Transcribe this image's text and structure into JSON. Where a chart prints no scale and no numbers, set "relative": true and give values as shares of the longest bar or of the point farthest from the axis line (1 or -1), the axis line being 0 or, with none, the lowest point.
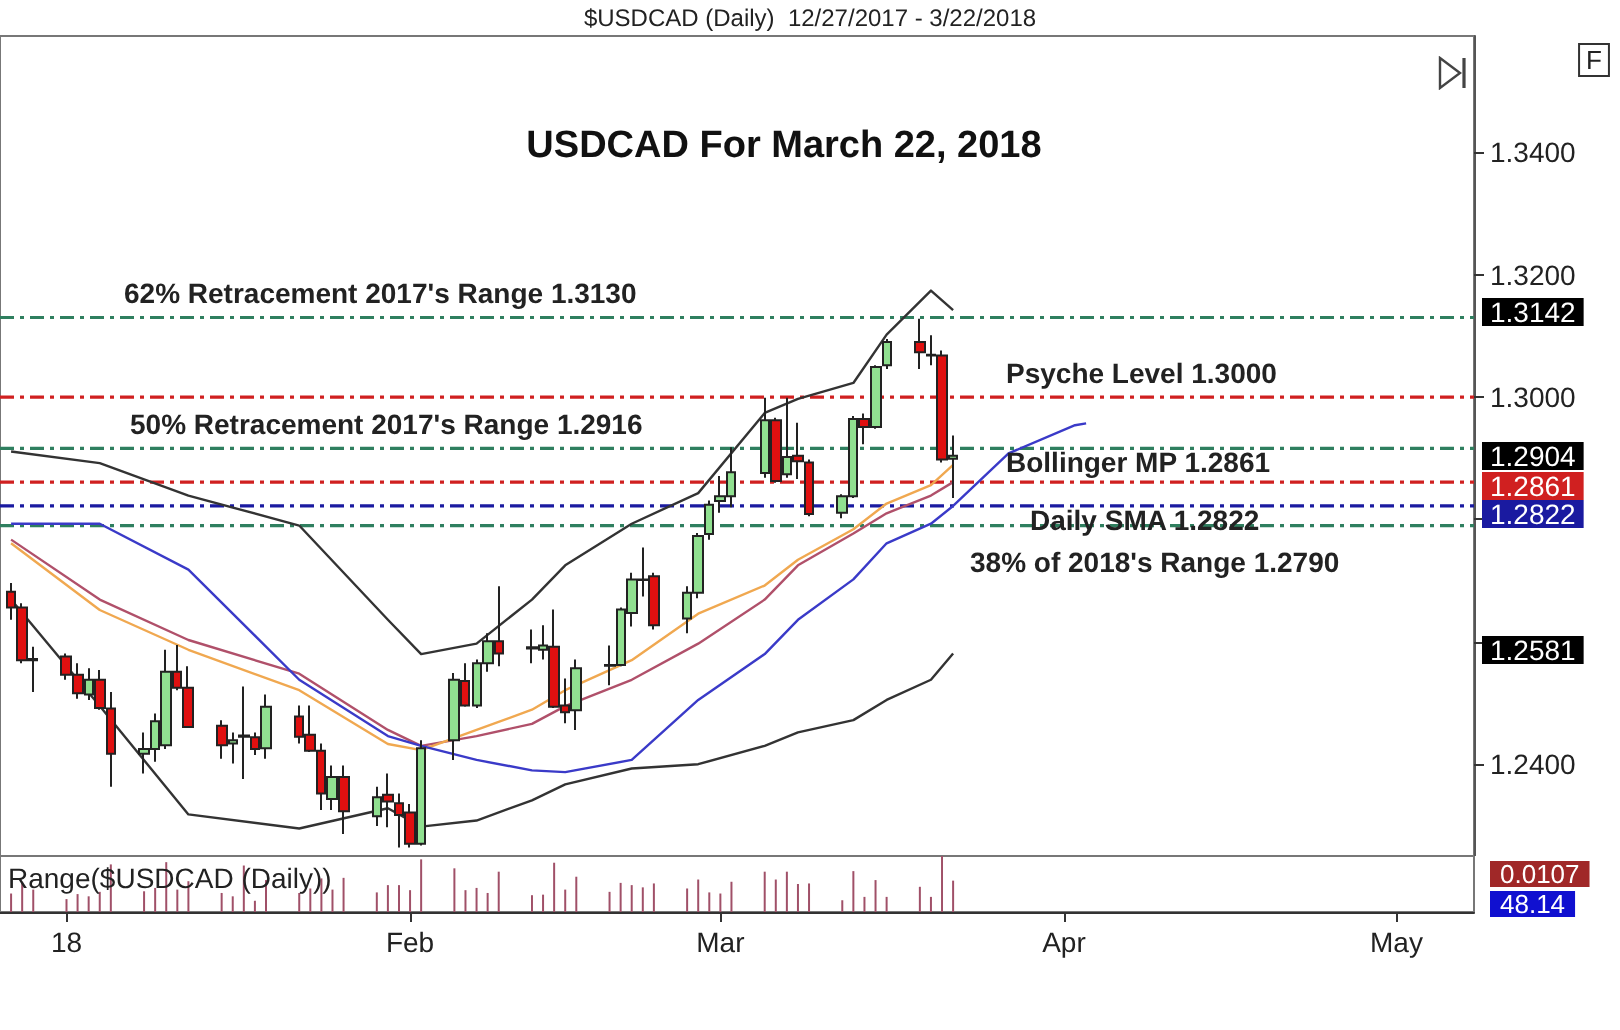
{
  "chart_data": [
    {
      "type": "candlestick",
      "title": "USDCAD For March 22, 2018",
      "subtitle": "$USDCAD (Daily)  12/27/2017 - 3/22/2018",
      "x": [
        "2017-12-27",
        "2017-12-28",
        "2017-12-29",
        "2018-01-01",
        "2018-01-02",
        "2018-01-03",
        "2018-01-04",
        "2018-01-05",
        "2018-01-08",
        "2018-01-09",
        "2018-01-10",
        "2018-01-11",
        "2018-01-12",
        "2018-01-15",
        "2018-01-16",
        "2018-01-17",
        "2018-01-18",
        "2018-01-19",
        "2018-01-22",
        "2018-01-23",
        "2018-01-24",
        "2018-01-25",
        "2018-01-26",
        "2018-01-29",
        "2018-01-30",
        "2018-01-31",
        "2018-02-01",
        "2018-02-02",
        "2018-02-05",
        "2018-02-06",
        "2018-02-07",
        "2018-02-08",
        "2018-02-09",
        "2018-02-12",
        "2018-02-13",
        "2018-02-14",
        "2018-02-15",
        "2018-02-16",
        "2018-02-19",
        "2018-02-20",
        "2018-02-21",
        "2018-02-22",
        "2018-02-23",
        "2018-02-26",
        "2018-02-27",
        "2018-02-28",
        "2018-03-01",
        "2018-03-02",
        "2018-03-05",
        "2018-03-06",
        "2018-03-07",
        "2018-03-08",
        "2018-03-09",
        "2018-03-12",
        "2018-03-13",
        "2018-03-14",
        "2018-03-15",
        "2018-03-16",
        "2018-03-19",
        "2018-03-20",
        "2018-03-21",
        "2018-03-22"
      ],
      "ohlc": [
        [
          1.2682,
          1.2696,
          1.2636,
          1.2656
        ],
        [
          1.2656,
          1.2663,
          1.2565,
          1.257
        ],
        [
          1.257,
          1.2592,
          1.2518,
          1.2572
        ],
        [
          1.2576,
          1.2581,
          1.2538,
          1.2546
        ],
        [
          1.2546,
          1.2565,
          1.2507,
          1.2516
        ],
        [
          1.2514,
          1.2557,
          1.2505,
          1.2538
        ],
        [
          1.2538,
          1.2554,
          1.2489,
          1.2492
        ],
        [
          1.2491,
          1.2518,
          1.2363,
          1.2417
        ],
        [
          1.2417,
          1.2452,
          1.2385,
          1.2425
        ],
        [
          1.2425,
          1.2483,
          1.2404,
          1.247
        ],
        [
          1.2431,
          1.2587,
          1.2425,
          1.2551
        ],
        [
          1.2551,
          1.2595,
          1.2521,
          1.2525
        ],
        [
          1.2525,
          1.256,
          1.2459,
          1.2461
        ],
        [
          1.2463,
          1.2472,
          1.2409,
          1.2431
        ],
        [
          1.2434,
          1.2452,
          1.2401,
          1.2439
        ],
        [
          1.2445,
          1.2527,
          1.2376,
          1.2447
        ],
        [
          1.2444,
          1.2452,
          1.2415,
          1.2425
        ],
        [
          1.2426,
          1.2514,
          1.2409,
          1.2494
        ],
        [
          1.2478,
          1.2496,
          1.2434,
          1.2445
        ],
        [
          1.2448,
          1.2496,
          1.242,
          1.2422
        ],
        [
          1.2422,
          1.2434,
          1.2325,
          1.2352
        ],
        [
          1.2343,
          1.2398,
          1.2325,
          1.2379
        ],
        [
          1.2379,
          1.2398,
          1.2286,
          1.2323
        ],
        [
          1.2315,
          1.2363,
          1.2299,
          1.2346
        ],
        [
          1.235,
          1.2385,
          1.2297,
          1.2339
        ],
        [
          1.2336,
          1.2352,
          1.2264,
          1.2317
        ],
        [
          1.2321,
          1.2335,
          1.2264,
          1.227
        ],
        [
          1.227,
          1.2439,
          1.2267,
          1.2426
        ],
        [
          1.2439,
          1.2549,
          1.2407,
          1.2538
        ],
        [
          1.2536,
          1.2565,
          1.2494,
          1.2496
        ],
        [
          1.2496,
          1.2571,
          1.2492,
          1.2565
        ],
        [
          1.2565,
          1.2614,
          1.2551,
          1.2601
        ],
        [
          1.2601,
          1.2691,
          1.256,
          1.2581
        ],
        [
          1.2589,
          1.262,
          1.2565,
          1.2591
        ],
        [
          1.2587,
          1.2627,
          1.2571,
          1.2594
        ],
        [
          1.2592,
          1.2653,
          1.2492,
          1.2494
        ],
        [
          1.2496,
          1.254,
          1.2467,
          1.2485
        ],
        [
          1.2488,
          1.2571,
          1.2456,
          1.2557
        ],
        [
          1.2561,
          1.2594,
          1.2529,
          1.2562
        ],
        [
          1.2562,
          1.2656,
          1.256,
          1.2653
        ],
        [
          1.2647,
          1.2713,
          1.2625,
          1.2702
        ],
        [
          1.2702,
          1.2754,
          1.2674,
          1.2701
        ],
        [
          1.2707,
          1.2713,
          1.262,
          1.2627
        ],
        [
          1.2638,
          1.2691,
          1.2614,
          1.268
        ],
        [
          1.268,
          1.2778,
          1.2671,
          1.2773
        ],
        [
          1.2776,
          1.2831,
          1.2767,
          1.2824
        ],
        [
          1.283,
          1.2871,
          1.2811,
          1.2838
        ],
        [
          1.2838,
          1.2918,
          1.282,
          1.2877
        ],
        [
          1.2876,
          1.2999,
          1.2868,
          1.2962
        ],
        [
          1.2962,
          1.2966,
          1.286,
          1.2863
        ],
        [
          1.2874,
          1.2999,
          1.2868,
          1.2902
        ],
        [
          1.2904,
          1.2958,
          1.2866,
          1.2895
        ],
        [
          1.2893,
          1.2898,
          1.2805,
          1.2809
        ],
        [
          1.2811,
          1.2841,
          1.2802,
          1.2838
        ],
        [
          1.2838,
          1.2969,
          1.2835,
          1.2964
        ],
        [
          1.2964,
          1.2973,
          1.2923,
          1.2951
        ],
        [
          1.2951,
          1.3052,
          1.2948,
          1.3049
        ],
        [
          1.3052,
          1.3095,
          1.3046,
          1.309
        ],
        [
          1.309,
          1.3128,
          1.3046,
          1.3073
        ],
        [
          1.3068,
          1.3101,
          1.3052,
          1.3069
        ],
        [
          1.3068,
          1.3076,
          1.2893,
          1.2898
        ],
        [
          1.2899,
          1.2937,
          1.2835,
          1.2904
        ]
      ],
      "series": [
        {
          "type": "line",
          "color": "#333333",
          "x": [
            "2017-12-27",
            "2018-01-04",
            "2018-01-12",
            "2018-01-22",
            "2018-01-30",
            "2018-02-02",
            "2018-02-07",
            "2018-02-12",
            "2018-02-15",
            "2018-02-21",
            "2018-02-27",
            "2018-03-05",
            "2018-03-08",
            "2018-03-13",
            "2018-03-16",
            "2018-03-20",
            "2018-03-22"
          ],
          "values": [
            1.2911,
            1.2892,
            1.2839,
            1.279,
            1.2636,
            1.258,
            1.2597,
            1.2669,
            1.2725,
            1.2793,
            1.2843,
            1.2974,
            1.2997,
            1.3023,
            1.3102,
            1.3174,
            1.3142
          ]
        },
        {
          "type": "line",
          "color": "#b0506a",
          "x": [
            "2017-12-27",
            "2018-01-04",
            "2018-01-12",
            "2018-01-22",
            "2018-01-30",
            "2018-02-02",
            "2018-02-07",
            "2018-02-12",
            "2018-02-15",
            "2018-02-21",
            "2018-02-27",
            "2018-03-05",
            "2018-03-08",
            "2018-03-13",
            "2018-03-16",
            "2018-03-20",
            "2018-03-22"
          ],
          "values": [
            1.2767,
            1.2669,
            1.2603,
            1.2548,
            1.2456,
            1.243,
            1.2446,
            1.2466,
            1.2495,
            1.2538,
            1.2597,
            1.2669,
            1.2725,
            1.2777,
            1.281,
            1.2839,
            1.2861
          ]
        },
        {
          "type": "line",
          "color": "#f0a850",
          "x": [
            "2017-12-27",
            "2018-01-04",
            "2018-01-12",
            "2018-01-22",
            "2018-01-30",
            "2018-02-02",
            "2018-02-07",
            "2018-02-12",
            "2018-02-15",
            "2018-02-21",
            "2018-02-27",
            "2018-03-05",
            "2018-03-08",
            "2018-03-13",
            "2018-03-16",
            "2018-03-20",
            "2018-03-22"
          ],
          "values": [
            1.2761,
            1.2652,
            1.2587,
            1.2521,
            1.2433,
            1.2423,
            1.2456,
            1.2489,
            1.2521,
            1.257,
            1.2646,
            1.2692,
            1.2734,
            1.2784,
            1.2826,
            1.2856,
            1.2889
          ]
        },
        {
          "type": "line",
          "color": "#333333",
          "x": [
            "2017-12-27",
            "2018-01-04",
            "2018-01-12",
            "2018-01-22",
            "2018-01-30",
            "2018-02-02",
            "2018-02-07",
            "2018-02-12",
            "2018-02-15",
            "2018-02-21",
            "2018-02-27",
            "2018-03-05",
            "2018-03-08",
            "2018-03-13",
            "2018-03-16",
            "2018-03-20",
            "2018-03-22"
          ],
          "values": [
            1.2669,
            1.2495,
            1.2318,
            1.2295,
            1.2328,
            1.2298,
            1.2308,
            1.2341,
            1.2367,
            1.2393,
            1.24,
            1.243,
            1.2452,
            1.2472,
            1.2505,
            1.2538,
            1.2581
          ]
        },
        {
          "type": "line",
          "color": "#3a3ac8",
          "x": [
            "2017-12-27",
            "2018-01-04",
            "2018-01-12",
            "2018-01-22",
            "2018-01-30",
            "2018-02-02",
            "2018-02-07",
            "2018-02-12",
            "2018-02-15",
            "2018-02-21",
            "2018-02-27",
            "2018-03-05",
            "2018-03-08",
            "2018-03-13",
            "2018-03-16",
            "2018-03-20",
            "2018-03-22",
            "2018-03-27",
            "2018-04-02",
            "2018-04-03"
          ],
          "values": [
            1.2793,
            1.2793,
            1.2718,
            1.2538,
            1.2446,
            1.243,
            1.2407,
            1.239,
            1.2387,
            1.2407,
            1.2505,
            1.258,
            1.2636,
            1.2702,
            1.2761,
            1.2793,
            1.2822,
            1.2908,
            1.2954,
            1.2957
          ]
        }
      ],
      "ref_lines": [
        {
          "axis": "y",
          "value": 1.313,
          "label": "62% Retracement 2017's Range 1.3130",
          "color": "#2f7f5f",
          "line_style": "dashed"
        },
        {
          "axis": "y",
          "value": 1.3,
          "label": "Psyche Level 1.3000",
          "color": "#d02020",
          "line_style": "dashed"
        },
        {
          "axis": "y",
          "value": 1.2916,
          "label": "50% Retracement 2017's Range 1.2916",
          "color": "#2f7f5f",
          "line_style": "dashed"
        },
        {
          "axis": "y",
          "value": 1.2861,
          "label": "Bollinger MP 1.2861",
          "color": "#d02020",
          "line_style": "dashed"
        },
        {
          "axis": "y",
          "value": 1.2822,
          "label": "Daily SMA 1.2822",
          "color": "#1a1aa0",
          "line_style": "dashed"
        },
        {
          "axis": "y",
          "value": 1.279,
          "label": "38% of 2018's Range 1.2790",
          "color": "#2f7f5f",
          "line_style": "dashed"
        }
      ],
      "annotations": [
        "1.3142",
        "1.2904",
        "1.2861",
        "1.2822",
        "1.2581",
        "F"
      ],
      "xlim": [
        "2017-12-26",
        "2018-05-08"
      ],
      "ylim": [
        1.225,
        1.359
      ],
      "yticks": [
        {
          "value": 1.24,
          "label": "1.2400"
        },
        {
          "value": 1.26,
          "label": null
        },
        {
          "value": 1.28,
          "label": null
        },
        {
          "value": 1.3,
          "label": "1.3000"
        },
        {
          "value": 1.32,
          "label": "1.3200"
        },
        {
          "value": 1.34,
          "label": "1.3400"
        }
      ],
      "tick_labels": "y"
    },
    {
      "type": "bar",
      "title": "Range($USDCAD (Daily))",
      "relative": true,
      "color": "#a05068",
      "x": [
        "2017-12-27",
        "2017-12-28",
        "2017-12-29",
        "2018-01-01",
        "2018-01-02",
        "2018-01-03",
        "2018-01-04",
        "2018-01-05",
        "2018-01-08",
        "2018-01-09",
        "2018-01-10",
        "2018-01-11",
        "2018-01-12",
        "2018-01-15",
        "2018-01-16",
        "2018-01-17",
        "2018-01-18",
        "2018-01-19",
        "2018-01-22",
        "2018-01-23",
        "2018-01-24",
        "2018-01-25",
        "2018-01-26",
        "2018-01-29",
        "2018-01-30",
        "2018-01-31",
        "2018-02-01",
        "2018-02-02",
        "2018-02-05",
        "2018-02-06",
        "2018-02-07",
        "2018-02-08",
        "2018-02-09",
        "2018-02-12",
        "2018-02-13",
        "2018-02-14",
        "2018-02-15",
        "2018-02-16",
        "2018-02-19",
        "2018-02-20",
        "2018-02-21",
        "2018-02-22",
        "2018-02-23",
        "2018-02-26",
        "2018-02-27",
        "2018-02-28",
        "2018-03-01",
        "2018-03-02",
        "2018-03-05",
        "2018-03-06",
        "2018-03-07",
        "2018-03-08",
        "2018-03-09",
        "2018-03-12",
        "2018-03-13",
        "2018-03-14",
        "2018-03-15",
        "2018-03-16",
        "2018-03-19",
        "2018-03-20",
        "2018-03-21",
        "2018-03-22"
      ],
      "values": [
        0.33,
        0.54,
        0.4,
        0.23,
        0.32,
        0.28,
        0.36,
        0.85,
        0.37,
        0.43,
        0.89,
        0.4,
        0.55,
        0.34,
        0.28,
        0.83,
        0.2,
        0.57,
        0.34,
        0.42,
        0.6,
        0.4,
        0.61,
        0.35,
        0.48,
        0.48,
        0.39,
        0.94,
        0.78,
        0.39,
        0.43,
        0.34,
        0.72,
        0.3,
        0.31,
        0.88,
        0.4,
        0.63,
        0.36,
        0.52,
        0.48,
        0.44,
        0.51,
        0.42,
        0.58,
        0.35,
        0.33,
        0.54,
        0.72,
        0.58,
        0.72,
        0.5,
        0.51,
        0.21,
        0.73,
        0.27,
        0.57,
        0.27,
        0.45,
        0.27,
        1,
        0.56
      ],
      "annotations": [
        "0.0107",
        "48.14"
      ],
      "xlim": [
        "2017-12-26",
        "2018-05-08"
      ],
      "xticks": [
        {
          "value": "2018-01-01",
          "label": "18"
        },
        {
          "value": "2018-02-01",
          "label": "Feb"
        },
        {
          "value": "2018-03-01",
          "label": "Mar"
        },
        {
          "value": "2018-04-01",
          "label": "Apr"
        },
        {
          "value": "2018-05-01",
          "label": "May"
        }
      ],
      "tick_labels": "x"
    }
  ]
}
